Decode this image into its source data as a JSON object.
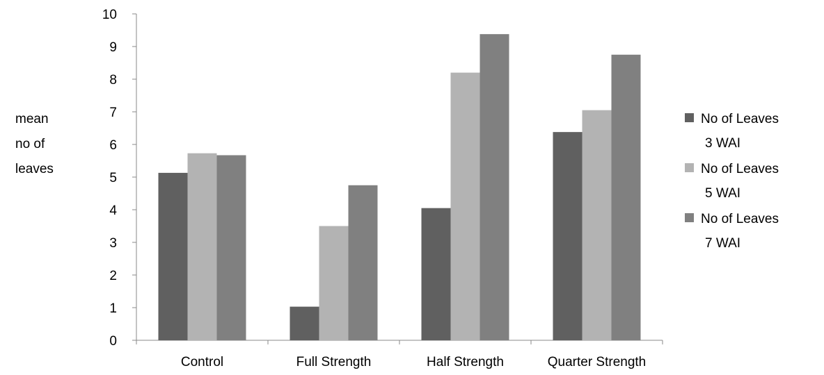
{
  "chart_data": {
    "type": "bar",
    "title": "",
    "xlabel": "",
    "ylabel_lines": [
      "mean",
      "no of",
      "leaves"
    ],
    "ylim": [
      0,
      10
    ],
    "yticks": [
      0,
      1,
      2,
      3,
      4,
      5,
      6,
      7,
      8,
      9,
      10
    ],
    "grid": false,
    "legend_position": "right",
    "categories": [
      "Control",
      "Full Strength",
      "Half Strength",
      "Quarter Strength"
    ],
    "series": [
      {
        "name_lines": [
          "No of Leaves",
          "3 WAI"
        ],
        "color": "#606060",
        "values": [
          5.13,
          1.03,
          4.05,
          6.38
        ]
      },
      {
        "name_lines": [
          "No of Leaves",
          "5 WAI"
        ],
        "color": "#b3b3b3",
        "values": [
          5.73,
          3.5,
          8.2,
          7.05
        ]
      },
      {
        "name_lines": [
          "No of Leaves",
          "7 WAI"
        ],
        "color": "#808080",
        "values": [
          5.67,
          4.75,
          9.38,
          8.75
        ]
      }
    ]
  }
}
